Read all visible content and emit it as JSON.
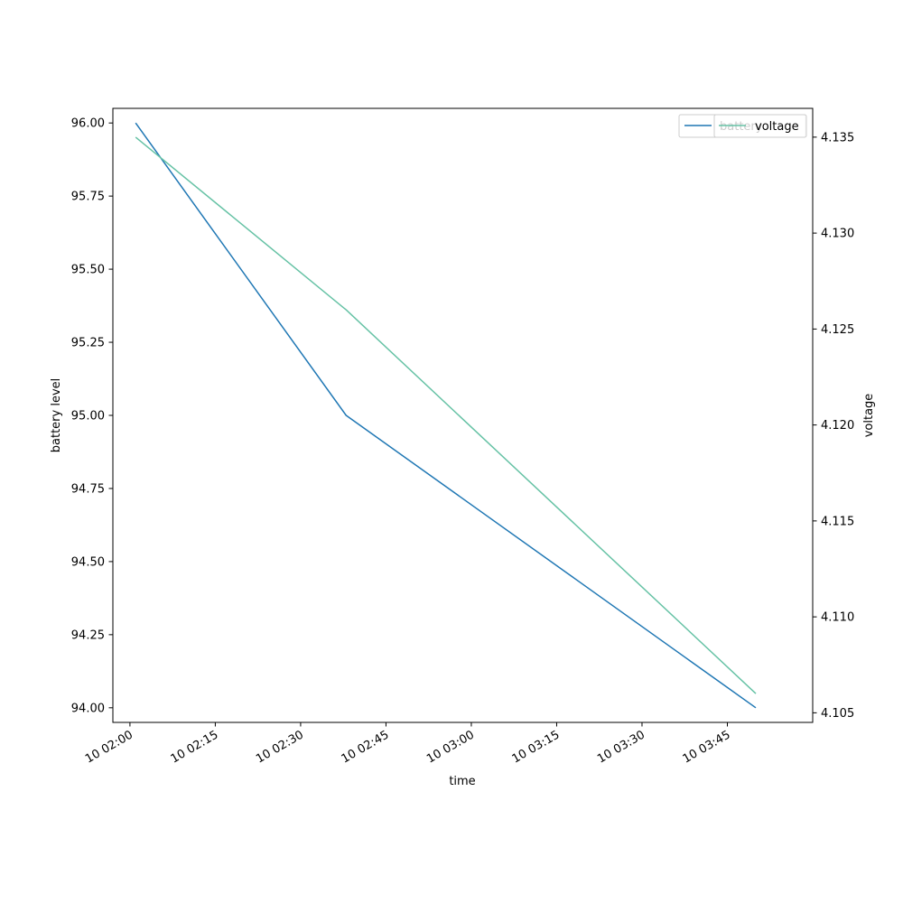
{
  "chart_data": {
    "type": "line",
    "xlabel": "time",
    "ylabel": "battery level",
    "y2label": "voltage",
    "x_tick_labels": [
      "10 02:00",
      "10 02:15",
      "10 02:30",
      "10 02:45",
      "10 03:00",
      "10 03:15",
      "10 03:30",
      "10 03:45"
    ],
    "y_tick_labels": [
      "94.00",
      "94.25",
      "94.50",
      "94.75",
      "95.00",
      "95.25",
      "95.50",
      "95.75",
      "96.00"
    ],
    "y2_tick_labels": [
      "4.105",
      "4.110",
      "4.115",
      "4.120",
      "4.125",
      "4.130",
      "4.135"
    ],
    "xlim": [
      "10 01:57",
      "10 04:00"
    ],
    "ylim": [
      93.95,
      96.05
    ],
    "y2lim": [
      4.1045,
      4.1365
    ],
    "series": [
      {
        "name": "battery",
        "axis": "left",
        "color": "#1f77b4",
        "x": [
          "10 02:01",
          "10 02:38",
          "10 03:50"
        ],
        "values": [
          96.0,
          95.0,
          94.0
        ]
      },
      {
        "name": "voltage",
        "axis": "right",
        "color": "#66c2a5",
        "x": [
          "10 02:01",
          "10 02:38",
          "10 03:50"
        ],
        "values": [
          4.135,
          4.126,
          4.106
        ]
      }
    ],
    "legend_position": "top-right",
    "grid": false
  }
}
